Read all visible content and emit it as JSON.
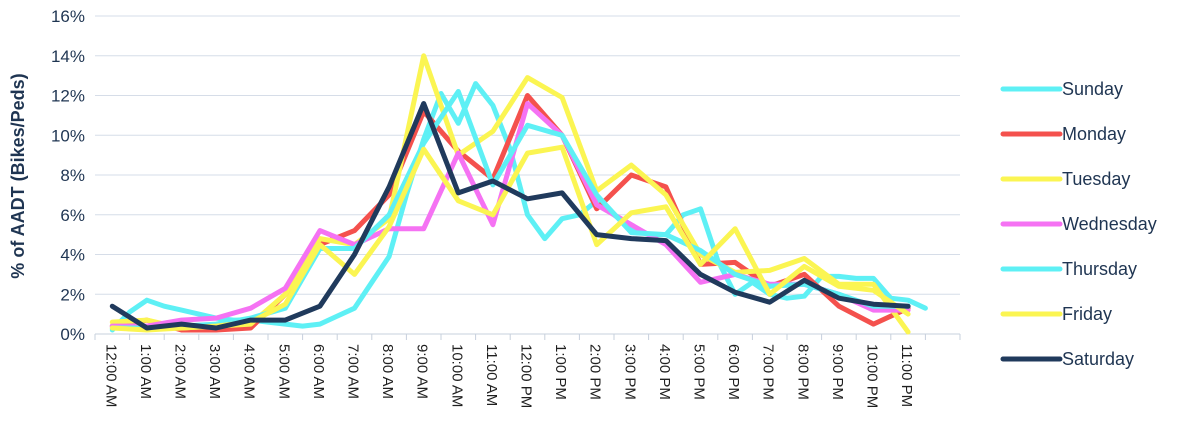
{
  "chart_data": {
    "type": "line",
    "ylabel": "% of AADT (Bikes/Peds)",
    "xlabel": "",
    "ylim": [
      0,
      16
    ],
    "y_ticks": [
      "0%",
      "2%",
      "4%",
      "6%",
      "8%",
      "10%",
      "12%",
      "14%",
      "16%"
    ],
    "categories": [
      "12:00 AM",
      "1:00 AM",
      "2:00 AM",
      "3:00 AM",
      "4:00 AM",
      "5:00 AM",
      "6:00 AM",
      "7:00 AM",
      "8:00 AM",
      "9:00 AM",
      "10:00 AM",
      "11:00 AM",
      "12:00 PM",
      "1:00 PM",
      "2:00 PM",
      "3:00 PM",
      "4:00 PM",
      "5:00 PM",
      "6:00 PM",
      "7:00 PM",
      "8:00 PM",
      "9:00 PM",
      "10:00 PM",
      "11:00 PM"
    ],
    "grid": true,
    "legend_position": "right",
    "series": [
      {
        "name": "Sunday",
        "color": "#5ef0f5",
        "x": [
          0,
          0.5,
          1,
          1.5,
          2,
          2.5,
          3,
          3.5,
          4,
          4.5,
          5,
          5.5,
          6,
          6.5,
          7,
          7.5,
          8,
          8.5,
          9,
          9.5,
          10,
          10.5,
          11,
          11.5,
          12,
          12.5,
          13,
          13.5,
          14,
          14.5,
          15,
          15.5,
          16,
          16.5,
          17,
          17.5,
          18,
          18.5,
          19,
          19.5,
          20,
          20.5,
          21,
          21.5,
          22,
          22.5,
          23,
          23.5
        ],
        "values": [
          0.2,
          1.1,
          1.7,
          1.4,
          1.2,
          1.0,
          0.8,
          0.7,
          0.7,
          0.6,
          0.5,
          0.4,
          0.5,
          0.9,
          1.3,
          2.6,
          3.9,
          7.0,
          9.8,
          12.1,
          10.6,
          12.6,
          11.5,
          9.3,
          6.0,
          4.8,
          5.8,
          6.0,
          6.7,
          6.0,
          5.3,
          5.0,
          5.0,
          6.0,
          6.3,
          3.7,
          2.0,
          2.6,
          2.0,
          1.8,
          1.9,
          2.9,
          2.9,
          2.8,
          2.8,
          1.8,
          1.7,
          1.3
        ]
      },
      {
        "name": "Monday",
        "color": "#f4514d",
        "x": [
          0,
          1,
          2,
          3,
          4,
          5,
          6,
          7,
          8,
          9,
          10,
          11,
          12,
          13,
          14,
          15,
          16,
          17,
          18,
          19,
          20,
          21,
          22,
          23
        ],
        "values": [
          0.4,
          0.7,
          0.2,
          0.2,
          0.3,
          2.0,
          4.5,
          5.2,
          7.0,
          11.2,
          9.2,
          7.8,
          12.0,
          10.0,
          6.3,
          8.0,
          7.4,
          3.5,
          3.6,
          2.4,
          3.0,
          1.4,
          0.5,
          1.3
        ]
      },
      {
        "name": "Tuesday",
        "color": "#fbf552",
        "x": [
          0,
          1,
          2,
          3,
          4,
          5,
          6,
          7,
          8,
          9,
          10,
          11,
          12,
          13,
          14,
          15,
          16,
          17,
          18,
          19,
          20,
          21,
          22,
          23
        ],
        "values": [
          0.6,
          0.7,
          0.3,
          0.4,
          0.5,
          2.0,
          4.8,
          4.5,
          5.8,
          14.0,
          9.0,
          10.2,
          12.9,
          11.9,
          7.2,
          8.5,
          7.0,
          4.0,
          3.1,
          3.2,
          3.8,
          2.5,
          2.5,
          0.1
        ]
      },
      {
        "name": "Wednesday",
        "color": "#f572f3",
        "x": [
          0,
          1,
          2,
          3,
          4,
          5,
          6,
          7,
          8,
          9,
          10,
          11,
          12,
          13,
          14,
          15,
          16,
          17,
          18,
          19,
          20,
          21,
          22,
          23
        ],
        "values": [
          0.4,
          0.4,
          0.7,
          0.8,
          1.3,
          2.3,
          5.2,
          4.5,
          5.3,
          5.3,
          9.1,
          5.5,
          11.6,
          10.0,
          6.5,
          5.5,
          4.5,
          2.6,
          3.0,
          2.5,
          2.5,
          2.0,
          1.2,
          1.2
        ]
      },
      {
        "name": "Thursday",
        "color": "#5ef0f5",
        "x": [
          0,
          1,
          2,
          3,
          4,
          5,
          6,
          7,
          8,
          9,
          10,
          11,
          12,
          13,
          14,
          15,
          16,
          17,
          18,
          19,
          20,
          21,
          22,
          23
        ],
        "values": [
          0.3,
          0.3,
          0.4,
          0.5,
          0.8,
          1.3,
          4.3,
          4.3,
          6.0,
          9.6,
          12.2,
          7.5,
          10.5,
          10.0,
          7.0,
          5.1,
          5.0,
          4.2,
          3.0,
          2.4,
          2.5,
          2.0,
          1.4,
          1.4
        ]
      },
      {
        "name": "Friday",
        "color": "#fbf552",
        "x": [
          0,
          1,
          2,
          3,
          4,
          5,
          6,
          7,
          8,
          9,
          10,
          11,
          12,
          13,
          14,
          15,
          16,
          17,
          18,
          19,
          20,
          21,
          22,
          23
        ],
        "values": [
          0.3,
          0.2,
          0.3,
          0.4,
          0.6,
          1.5,
          4.5,
          3.0,
          5.4,
          9.3,
          6.7,
          6.0,
          9.1,
          9.4,
          4.5,
          6.1,
          6.4,
          3.5,
          5.3,
          2.0,
          3.4,
          2.4,
          2.2,
          1.0
        ]
      },
      {
        "name": "Saturday",
        "color": "#203a5c",
        "x": [
          0,
          1,
          2,
          3,
          4,
          5,
          6,
          7,
          8,
          9,
          10,
          11,
          12,
          13,
          14,
          15,
          16,
          17,
          18,
          19,
          20,
          21,
          22,
          23
        ],
        "values": [
          1.4,
          0.3,
          0.5,
          0.3,
          0.7,
          0.7,
          1.4,
          4.0,
          7.4,
          11.6,
          7.1,
          7.7,
          6.8,
          7.1,
          5.0,
          4.8,
          4.7,
          3.0,
          2.1,
          1.6,
          2.7,
          1.8,
          1.5,
          1.4
        ]
      }
    ]
  }
}
